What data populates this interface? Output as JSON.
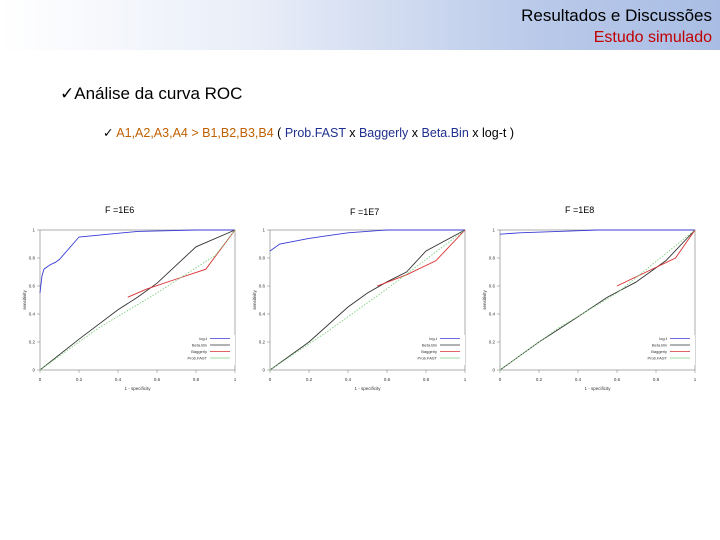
{
  "header": {
    "title": "Resultados e Discussões",
    "subtitle": "Estudo simulado"
  },
  "bullets": {
    "check": "✓",
    "main": "Análise da curva ROC",
    "groups": "A1,A2,A3,A4 > B1,B2,B3,B4",
    "comparison_open": "(",
    "m1": "Prob.FAST",
    "sep1": "x",
    "m2": "Baggerly",
    "sep2": "x",
    "m3": "Beta.Bin",
    "sep3": "x",
    "m4": "log-t",
    "comparison_close": ")"
  },
  "colors": {
    "accent_red": "#c00000",
    "group_orange": "#c06000",
    "method_blue": "#1f2f8f",
    "logt": "#3b3bd6",
    "betabin": "#333333",
    "baggerly": "#d83030",
    "probfast": "#7fd07f"
  },
  "chart_data": [
    {
      "type": "line",
      "panel_label": "F =1E6",
      "xlabel": "1 - specificity",
      "ylabel": "sensitivity",
      "xlim": [
        0,
        1
      ],
      "ylim": [
        0,
        1
      ],
      "x_ticks": [
        "0",
        "0.2",
        "0.4",
        "0.6",
        "0.8",
        "1"
      ],
      "y_ticks": [
        "0",
        "0.2",
        "0.4",
        "0.6",
        "0.8",
        "1"
      ],
      "legend": [
        "log-t",
        "Beta.Bin",
        "Baggerly",
        "Prob.FAST"
      ],
      "series": [
        {
          "name": "log-t",
          "color": "#3b3bd6",
          "x": [
            0,
            0.01,
            0.02,
            0.05,
            0.08,
            0.1,
            0.2,
            0.5,
            0.8,
            1
          ],
          "y": [
            0.55,
            0.67,
            0.72,
            0.75,
            0.77,
            0.79,
            0.95,
            0.99,
            1,
            1
          ]
        },
        {
          "name": "Beta.Bin",
          "color": "#333333",
          "x": [
            0,
            0.2,
            0.4,
            0.5,
            0.6,
            0.8,
            1
          ],
          "y": [
            0,
            0.22,
            0.43,
            0.52,
            0.62,
            0.88,
            1
          ]
        },
        {
          "name": "Baggerly",
          "color": "#d83030",
          "x": [
            0.45,
            0.55,
            0.7,
            0.85,
            1
          ],
          "y": [
            0.52,
            0.58,
            0.65,
            0.72,
            1
          ]
        },
        {
          "name": "Prob.FAST",
          "color": "#7fd07f",
          "x": [
            0,
            0.3,
            0.6,
            0.9,
            1
          ],
          "y": [
            0,
            0.3,
            0.55,
            0.82,
            1
          ]
        }
      ]
    },
    {
      "type": "line",
      "panel_label": "F =1E7",
      "xlabel": "1 - specificity",
      "ylabel": "sensitivity",
      "xlim": [
        0,
        1
      ],
      "ylim": [
        0,
        1
      ],
      "x_ticks": [
        "0",
        "0.2",
        "0.4",
        "0.6",
        "0.8",
        "1"
      ],
      "y_ticks": [
        "0",
        "0.2",
        "0.4",
        "0.6",
        "0.8",
        "1"
      ],
      "legend": [
        "log-t",
        "Beta.Bin",
        "Baggerly",
        "Prob.FAST"
      ],
      "series": [
        {
          "name": "log-t",
          "color": "#3b3bd6",
          "x": [
            0,
            0.05,
            0.2,
            0.3,
            0.4,
            0.6,
            1
          ],
          "y": [
            0.85,
            0.9,
            0.94,
            0.96,
            0.98,
            1,
            1
          ]
        },
        {
          "name": "Beta.Bin",
          "color": "#333333",
          "x": [
            0,
            0.2,
            0.4,
            0.5,
            0.6,
            0.7,
            0.8,
            1
          ],
          "y": [
            0,
            0.2,
            0.45,
            0.55,
            0.63,
            0.7,
            0.85,
            1
          ]
        },
        {
          "name": "Baggerly",
          "color": "#d83030",
          "x": [
            0.55,
            0.7,
            0.85,
            1
          ],
          "y": [
            0.6,
            0.68,
            0.78,
            1
          ]
        },
        {
          "name": "Prob.FAST",
          "color": "#7fd07f",
          "x": [
            0,
            0.3,
            0.6,
            1
          ],
          "y": [
            0,
            0.28,
            0.58,
            1
          ]
        }
      ]
    },
    {
      "type": "line",
      "panel_label": "F =1E8",
      "xlabel": "1 - specificity",
      "ylabel": "sensitivity",
      "xlim": [
        0,
        1
      ],
      "ylim": [
        0,
        1
      ],
      "x_ticks": [
        "0",
        "0.2",
        "0.4",
        "0.6",
        "0.8",
        "1"
      ],
      "y_ticks": [
        "0",
        "0.2",
        "0.4",
        "0.6",
        "0.8",
        "1"
      ],
      "legend": [
        "log-t",
        "Beta.Bin",
        "Baggerly",
        "Prob.FAST"
      ],
      "series": [
        {
          "name": "log-t",
          "color": "#3b3bd6",
          "x": [
            0,
            0.1,
            0.3,
            0.5,
            0.7,
            1
          ],
          "y": [
            0.97,
            0.98,
            0.99,
            1,
            1,
            1
          ]
        },
        {
          "name": "Beta.Bin",
          "color": "#333333",
          "x": [
            0,
            0.2,
            0.4,
            0.55,
            0.7,
            0.85,
            1
          ],
          "y": [
            0,
            0.2,
            0.38,
            0.52,
            0.63,
            0.78,
            1
          ]
        },
        {
          "name": "Baggerly",
          "color": "#d83030",
          "x": [
            0.6,
            0.75,
            0.9,
            1
          ],
          "y": [
            0.6,
            0.7,
            0.8,
            1
          ]
        },
        {
          "name": "Prob.FAST",
          "color": "#7fd07f",
          "x": [
            0,
            0.3,
            0.6,
            1
          ],
          "y": [
            0,
            0.3,
            0.55,
            1
          ]
        }
      ]
    }
  ]
}
